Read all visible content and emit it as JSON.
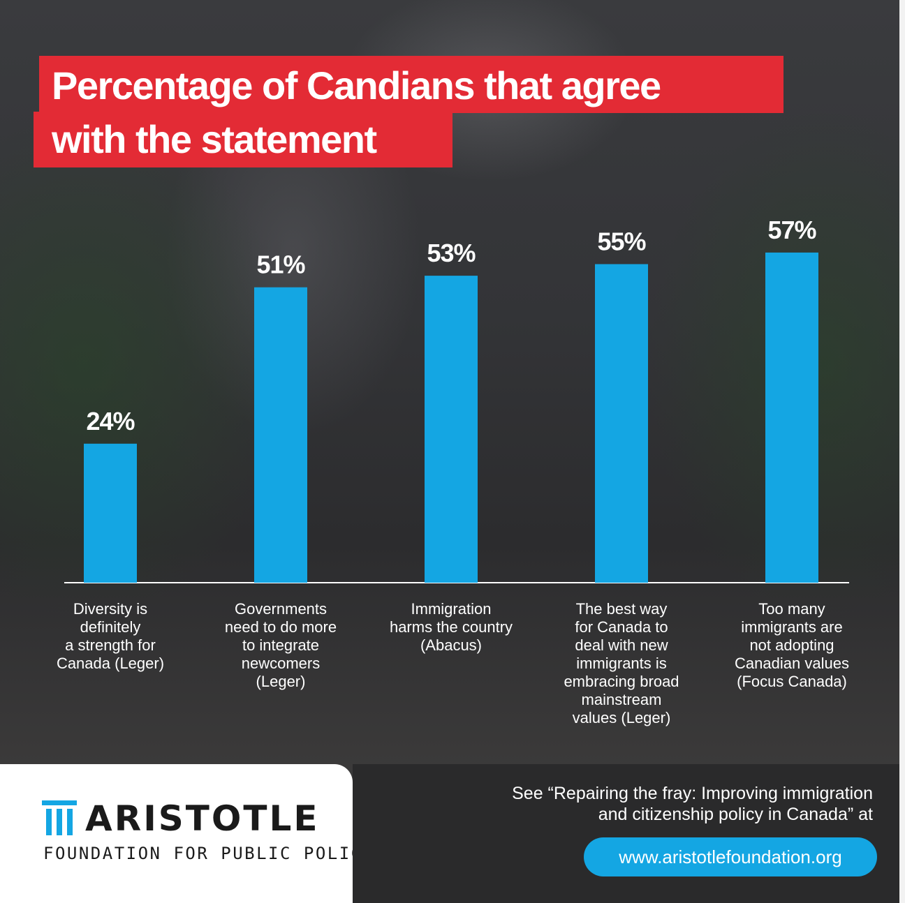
{
  "chart_data": {
    "type": "bar",
    "title": "Percentage of Candians that agree with the statement",
    "title_lines": [
      "Percentage of Candians that agree",
      "with the statement"
    ],
    "categories": [
      "Diversity is\ndefinitely\na strength for\nCanada (Leger)",
      "Governments\nneed to do more\nto integrate\nnewcomers\n(Leger)",
      "Immigration\nharms the country\n(Abacus)",
      "The best way\nfor Canada to\ndeal with new\nimmigrants is\nembracing broad\nmainstream\nvalues (Leger)",
      "Too many\nimmigrants are\nnot adopting\nCanadian values\n(Focus Canada)"
    ],
    "values": [
      24,
      51,
      53,
      55,
      57
    ],
    "value_labels": [
      "24%",
      "51%",
      "53%",
      "55%",
      "57%"
    ],
    "unit": "%",
    "ylim": [
      0,
      100
    ],
    "bar_color": "#14a6e3",
    "grid": false,
    "legend": "none"
  },
  "footer": {
    "org_name": "ARISTOTLE",
    "org_subtitle": "FOUNDATION FOR PUBLIC POLICY",
    "logo_icon": "column-icon",
    "see_text": "See “Repairing the fray: Improving immigration\nand citizenship policy in Canada” at",
    "url": "www.aristotlefoundation.org"
  },
  "colors": {
    "title_band": "#e32b35",
    "accent": "#14a6e3",
    "footer_dark": "#2a2a2b"
  }
}
